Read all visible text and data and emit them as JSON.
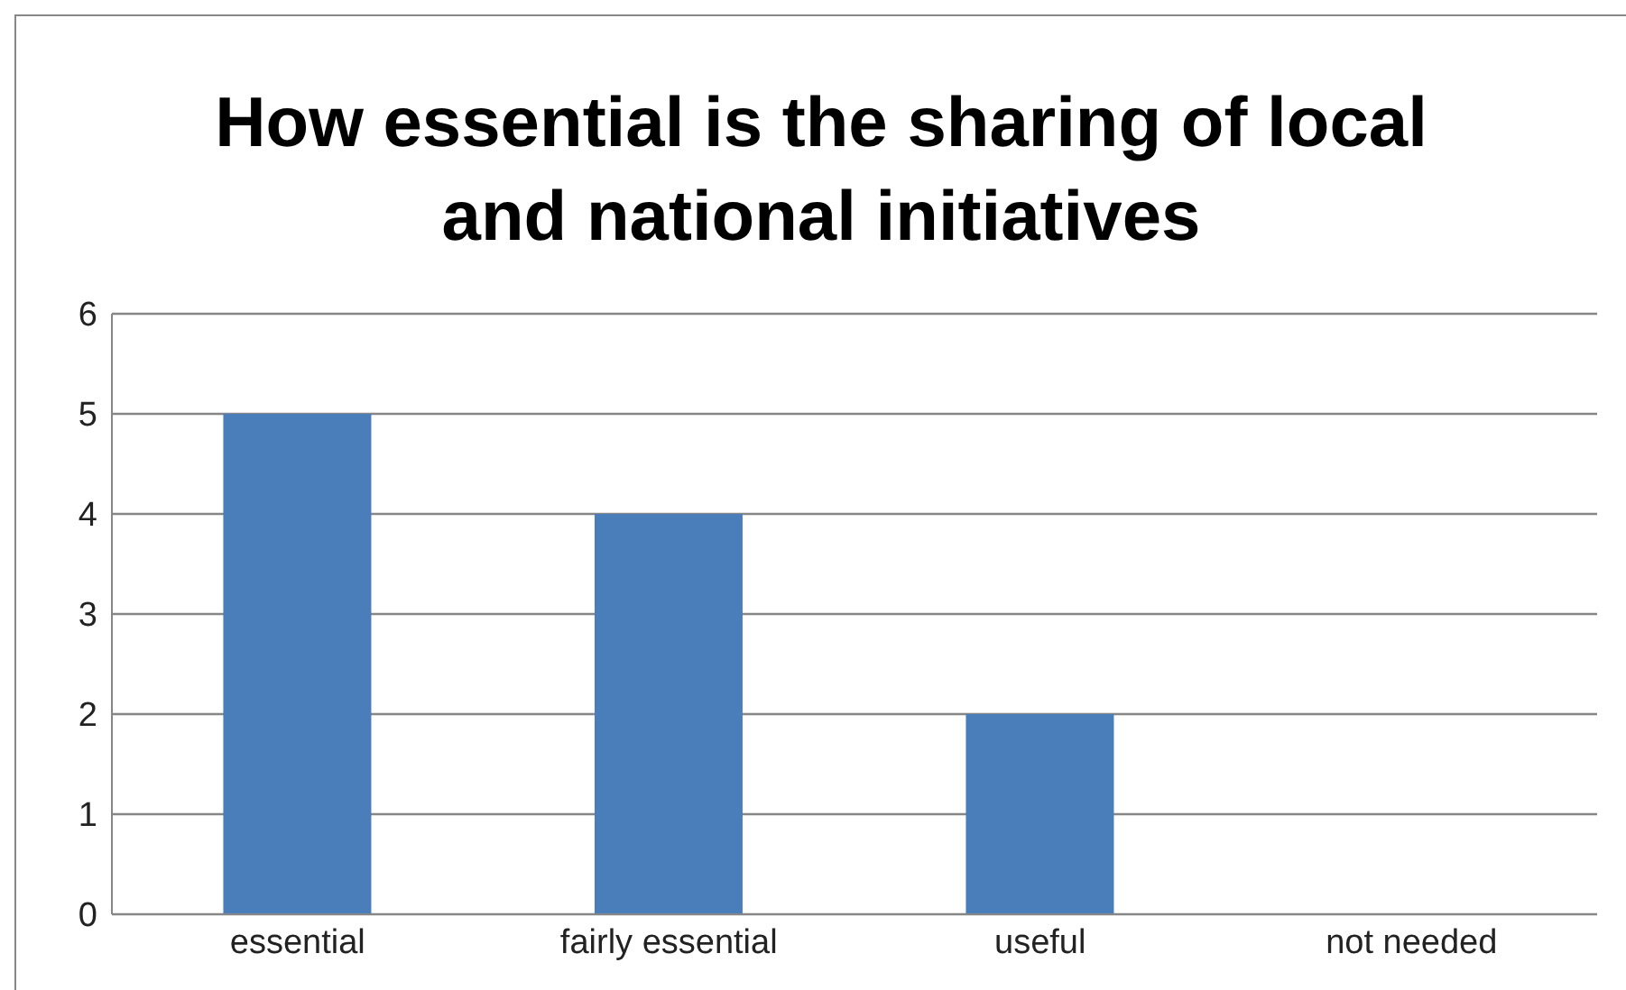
{
  "chart_data": {
    "type": "bar",
    "title": "How essential is the sharing of local and national initiatives",
    "categories": [
      "essential",
      "fairly essential",
      "useful",
      "not needed"
    ],
    "values": [
      5,
      4,
      2,
      0
    ],
    "color": "#4a7ebb",
    "ylim": [
      0,
      6
    ],
    "yticks": [
      0,
      1,
      2,
      3,
      4,
      5,
      6
    ],
    "grid": "y"
  }
}
